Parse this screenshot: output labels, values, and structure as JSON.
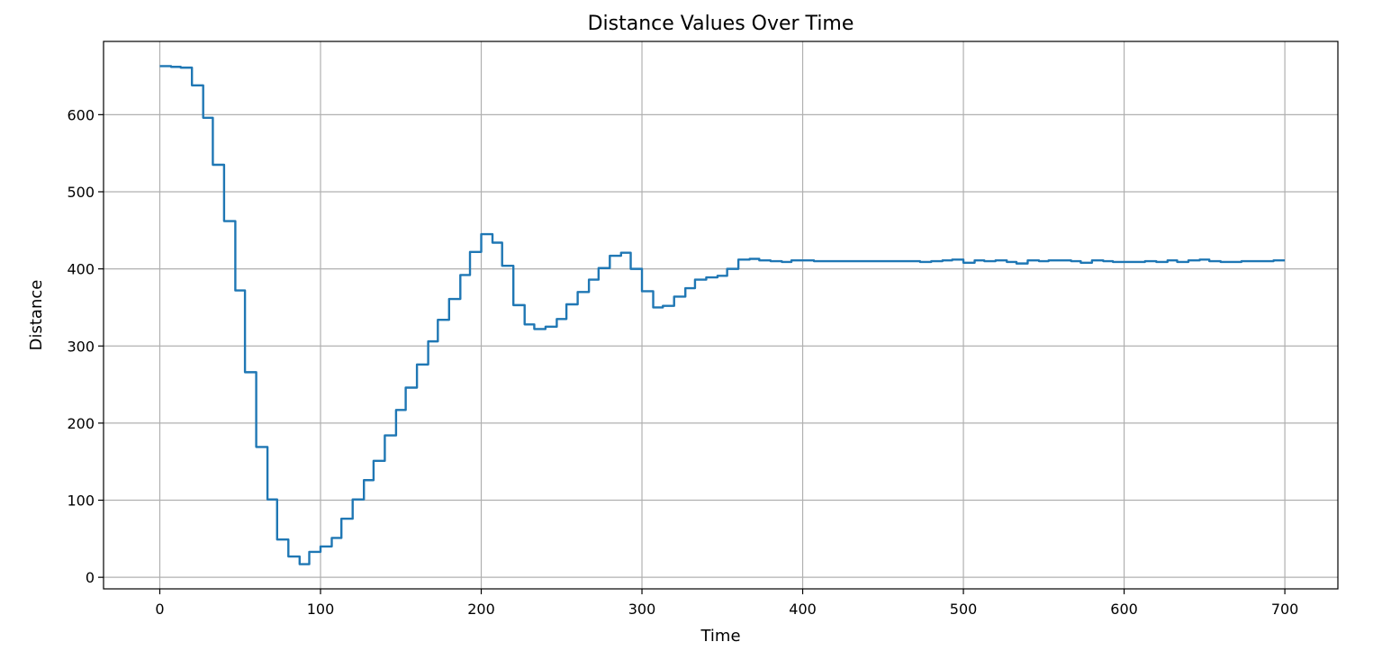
{
  "chart_data": {
    "type": "line",
    "title": "Distance Values Over Time",
    "xlabel": "Time",
    "ylabel": "Distance",
    "xlim": [
      -35,
      733
    ],
    "ylim": [
      -15,
      695
    ],
    "xticks": [
      0,
      100,
      200,
      300,
      400,
      500,
      600,
      700
    ],
    "yticks": [
      0,
      100,
      200,
      300,
      400,
      500,
      600
    ],
    "grid": true,
    "line_color": "#1f77b4",
    "series": [
      {
        "step": true,
        "x": [
          0,
          7,
          13,
          20,
          27,
          33,
          40,
          47,
          53,
          60,
          67,
          73,
          80,
          87,
          93,
          100,
          107,
          113,
          120,
          127,
          133,
          140,
          147,
          153,
          160,
          167,
          173,
          180,
          187,
          193,
          200,
          207,
          213,
          220,
          227,
          233,
          240,
          247,
          253,
          260,
          267,
          273,
          280,
          287,
          293,
          300,
          307,
          313,
          320,
          327,
          333,
          340,
          347,
          353,
          360,
          367,
          373,
          380,
          387,
          393,
          400,
          407,
          413,
          420,
          427,
          433,
          440,
          447,
          453,
          460,
          467,
          473,
          480,
          487,
          493,
          500,
          507,
          513,
          520,
          527,
          533,
          540,
          547,
          553,
          560,
          567,
          573,
          580,
          587,
          593,
          600,
          607,
          613,
          620,
          627,
          633,
          640,
          647,
          653,
          660,
          667,
          673,
          680,
          687,
          693,
          700
        ],
        "y": [
          663,
          662,
          661,
          638,
          596,
          535,
          462,
          372,
          266,
          169,
          101,
          49,
          27,
          17,
          33,
          40,
          51,
          76,
          101,
          126,
          151,
          184,
          217,
          246,
          276,
          306,
          334,
          361,
          392,
          422,
          445,
          434,
          404,
          353,
          328,
          322,
          325,
          335,
          354,
          370,
          386,
          401,
          417,
          421,
          400,
          371,
          350,
          352,
          364,
          375,
          386,
          389,
          391,
          400,
          412,
          413,
          411,
          410,
          409,
          411,
          411,
          410,
          410,
          410,
          410,
          410,
          410,
          410,
          410,
          410,
          410,
          409,
          410,
          411,
          412,
          408,
          411,
          410,
          411,
          409,
          407,
          411,
          410,
          411,
          411,
          410,
          408,
          411,
          410,
          409,
          409,
          409,
          410,
          409,
          411,
          409,
          411,
          412,
          410,
          409,
          409,
          410,
          410,
          410,
          411,
          411
        ]
      }
    ]
  }
}
